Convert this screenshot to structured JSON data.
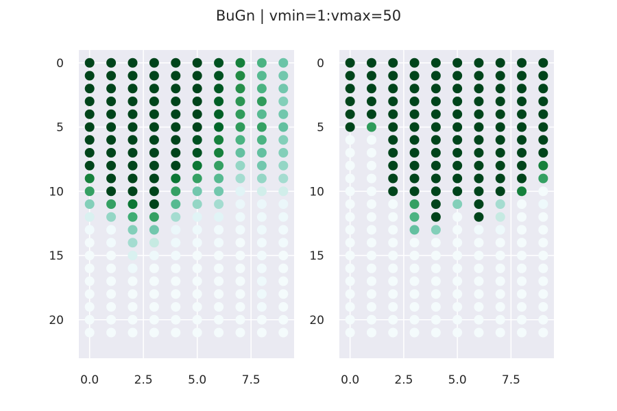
{
  "figure": {
    "title": "BuGn | vmin=1:vmax=50"
  },
  "chart_data": [
    {
      "type": "scatter",
      "colormap": "BuGn",
      "vmin": 1,
      "vmax": 50,
      "y_inverted": true,
      "grid": true,
      "xlim": [
        -0.5,
        9.5
      ],
      "ylim": [
        23,
        -1
      ],
      "xticks": [
        "0.0",
        "2.5",
        "5.0",
        "7.5"
      ],
      "yticks": [
        "0",
        "5",
        "10",
        "15",
        "20"
      ],
      "columns": [
        0,
        1,
        2,
        3,
        4,
        5,
        6,
        7,
        8,
        9
      ],
      "rows": [
        0,
        1,
        2,
        3,
        4,
        5,
        6,
        7,
        8,
        9,
        10,
        11,
        12,
        13,
        14,
        15,
        16,
        17,
        18,
        19,
        20,
        21
      ],
      "values": [
        [
          50,
          50,
          50,
          50,
          50,
          50,
          48,
          40,
          30,
          25
        ],
        [
          50,
          50,
          50,
          50,
          50,
          50,
          48,
          38,
          28,
          24
        ],
        [
          50,
          50,
          50,
          50,
          50,
          50,
          47,
          37,
          30,
          24
        ],
        [
          50,
          50,
          50,
          50,
          50,
          50,
          46,
          36,
          35,
          22
        ],
        [
          50,
          50,
          50,
          50,
          50,
          50,
          46,
          35,
          28,
          24
        ],
        [
          50,
          50,
          50,
          50,
          50,
          50,
          45,
          35,
          34,
          26
        ],
        [
          50,
          50,
          50,
          50,
          50,
          48,
          40,
          30,
          30,
          22
        ],
        [
          50,
          50,
          50,
          50,
          50,
          48,
          40,
          26,
          26,
          22
        ],
        [
          50,
          50,
          50,
          50,
          50,
          42,
          34,
          20,
          24,
          20
        ],
        [
          40,
          50,
          50,
          50,
          42,
          34,
          28,
          18,
          20,
          18
        ],
        [
          34,
          50,
          50,
          50,
          34,
          24,
          24,
          8,
          12,
          12
        ],
        [
          22,
          34,
          42,
          50,
          28,
          20,
          18,
          5,
          5,
          5
        ],
        [
          10,
          20,
          32,
          34,
          18,
          8,
          8,
          4,
          4,
          4
        ],
        [
          3,
          3,
          22,
          24,
          5,
          4,
          3,
          3,
          4,
          3
        ],
        [
          2,
          3,
          18,
          14,
          4,
          3,
          3,
          2,
          3,
          3
        ],
        [
          2,
          2,
          10,
          4,
          3,
          2,
          2,
          2,
          3,
          2
        ],
        [
          2,
          2,
          4,
          2,
          2,
          2,
          2,
          2,
          3,
          2
        ],
        [
          2,
          2,
          2,
          2,
          2,
          2,
          2,
          2,
          4,
          2
        ],
        [
          2,
          2,
          2,
          2,
          2,
          2,
          2,
          2,
          4,
          2
        ],
        [
          2,
          2,
          2,
          2,
          2,
          2,
          2,
          2,
          3,
          2
        ],
        [
          2,
          2,
          2,
          2,
          2,
          2,
          2,
          2,
          2,
          2
        ],
        [
          2,
          2,
          2,
          2,
          2,
          2,
          2,
          2,
          2,
          2
        ]
      ]
    },
    {
      "type": "scatter",
      "colormap": "BuGn",
      "vmin": 1,
      "vmax": 50,
      "y_inverted": true,
      "grid": true,
      "xlim": [
        -0.5,
        9.5
      ],
      "ylim": [
        23,
        -1
      ],
      "xticks": [
        "0.0",
        "2.5",
        "5.0",
        "7.5"
      ],
      "yticks": [
        "0",
        "5",
        "10",
        "15",
        "20"
      ],
      "columns": [
        0,
        1,
        2,
        3,
        4,
        5,
        6,
        7,
        8,
        9
      ],
      "rows": [
        0,
        1,
        2,
        3,
        4,
        5,
        6,
        7,
        8,
        9,
        10,
        11,
        12,
        13,
        14,
        15,
        16,
        17,
        18,
        19,
        20,
        21
      ],
      "values": [
        [
          50,
          50,
          50,
          50,
          50,
          50,
          50,
          50,
          50,
          50
        ],
        [
          50,
          50,
          50,
          50,
          50,
          50,
          50,
          50,
          50,
          50
        ],
        [
          50,
          50,
          50,
          50,
          50,
          50,
          50,
          50,
          50,
          50
        ],
        [
          50,
          50,
          50,
          50,
          50,
          50,
          50,
          50,
          50,
          50
        ],
        [
          50,
          50,
          50,
          50,
          50,
          50,
          50,
          50,
          50,
          50
        ],
        [
          50,
          35,
          50,
          50,
          50,
          50,
          50,
          50,
          50,
          50
        ],
        [
          2,
          2,
          50,
          50,
          50,
          50,
          50,
          50,
          50,
          50
        ],
        [
          2,
          2,
          50,
          50,
          50,
          50,
          50,
          50,
          50,
          50
        ],
        [
          2,
          2,
          50,
          50,
          50,
          50,
          50,
          50,
          50,
          40
        ],
        [
          2,
          2,
          50,
          50,
          50,
          50,
          50,
          50,
          50,
          34
        ],
        [
          2,
          2,
          50,
          50,
          50,
          50,
          50,
          50,
          40,
          2
        ],
        [
          2,
          2,
          2,
          34,
          50,
          22,
          50,
          18,
          2,
          4
        ],
        [
          2,
          2,
          2,
          30,
          50,
          2,
          50,
          14,
          2,
          2
        ],
        [
          2,
          2,
          2,
          26,
          22,
          2,
          3,
          4,
          2,
          2
        ],
        [
          2,
          2,
          2,
          2,
          2,
          2,
          2,
          2,
          2,
          2
        ],
        [
          2,
          2,
          2,
          2,
          2,
          2,
          2,
          2,
          2,
          2
        ],
        [
          2,
          2,
          2,
          2,
          2,
          2,
          2,
          2,
          2,
          2
        ],
        [
          2,
          2,
          2,
          2,
          2,
          2,
          2,
          2,
          2,
          2
        ],
        [
          2,
          2,
          2,
          2,
          2,
          2,
          2,
          2,
          2,
          2
        ],
        [
          2,
          2,
          2,
          2,
          2,
          2,
          2,
          2,
          2,
          2
        ],
        [
          2,
          2,
          2,
          2,
          2,
          2,
          2,
          2,
          2,
          2
        ],
        [
          2,
          2,
          2,
          2,
          2,
          2,
          2,
          2,
          2,
          2
        ]
      ]
    }
  ]
}
